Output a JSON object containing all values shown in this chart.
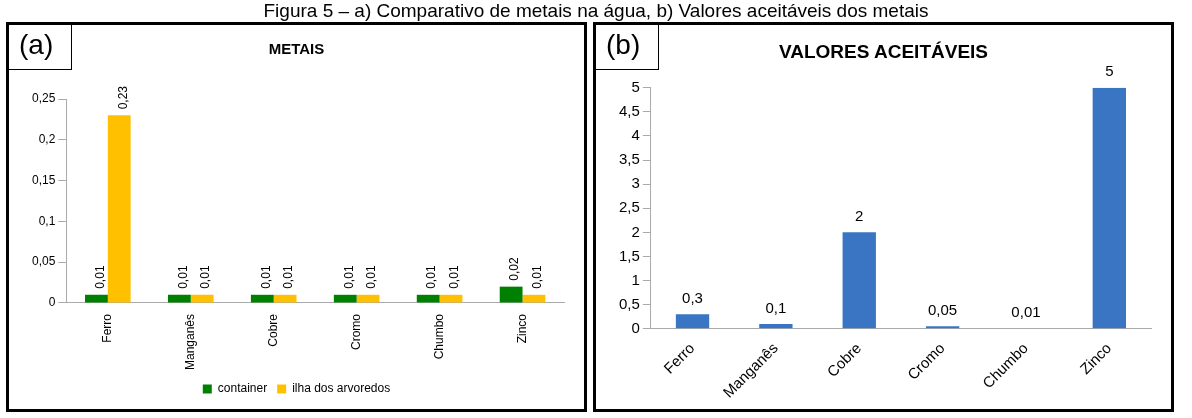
{
  "chart_data": [
    {
      "type": "bar",
      "title": "METAIS",
      "annotations": [
        "Figura 5 – a) Comparativo de metais na água, b) Valores aceitáveis dos metais",
        "(a)"
      ],
      "categories": [
        "Ferro",
        "Manganês",
        "Cobre",
        "Cromo",
        "Chumbo",
        "Zinco"
      ],
      "series": [
        {
          "name": "container",
          "color": "#008000",
          "values": [
            0.01,
            0.01,
            0.01,
            0.01,
            0.01,
            0.02
          ],
          "value_labels": [
            "0,01",
            "0,01",
            "0,01",
            "0,01",
            "0,01",
            "0,02"
          ]
        },
        {
          "name": "ilha dos arvoredos",
          "color": "#ffc000",
          "values": [
            0.23,
            0.01,
            0.01,
            0.01,
            0.01,
            0.01
          ],
          "value_labels": [
            "0,23",
            "0,01",
            "0,01",
            "0,01",
            "0,01",
            "0,01"
          ]
        }
      ],
      "ylim": [
        0,
        0.25
      ],
      "yticks": [
        0,
        {
          "value": 0.05,
          "label": "0,05"
        },
        {
          "value": 0.1,
          "label": "0,1"
        },
        {
          "value": 0.15,
          "label": "0,15"
        },
        {
          "value": 0.2,
          "label": "0,2"
        },
        {
          "value": 0.25,
          "label": "0,25"
        }
      ],
      "legend": "bottom",
      "grid": false
    },
    {
      "type": "bar",
      "title": "VALORES ACEITÁVEIS",
      "annotations": [
        "(b)"
      ],
      "categories": [
        "Ferro",
        "Manganês",
        "Cobre",
        "Cromo",
        "Chumbo",
        "Zinco"
      ],
      "series": [
        {
          "color": "#3a75c4",
          "values": [
            0.3,
            0.1,
            2,
            0.05,
            0.01,
            5
          ],
          "value_labels": [
            "0,3",
            "0,1",
            "2",
            "0,05",
            "0,01",
            "5"
          ]
        }
      ],
      "ylim": [
        0,
        5
      ],
      "yticks": [
        0,
        {
          "value": 0.5,
          "label": "0,5"
        },
        1,
        {
          "value": 1.5,
          "label": "1,5"
        },
        2,
        {
          "value": 2.5,
          "label": "2,5"
        },
        3,
        {
          "value": 3.5,
          "label": "3,5"
        },
        4,
        {
          "value": 4.5,
          "label": "4,5"
        },
        5
      ],
      "legend": false,
      "grid": false
    }
  ]
}
